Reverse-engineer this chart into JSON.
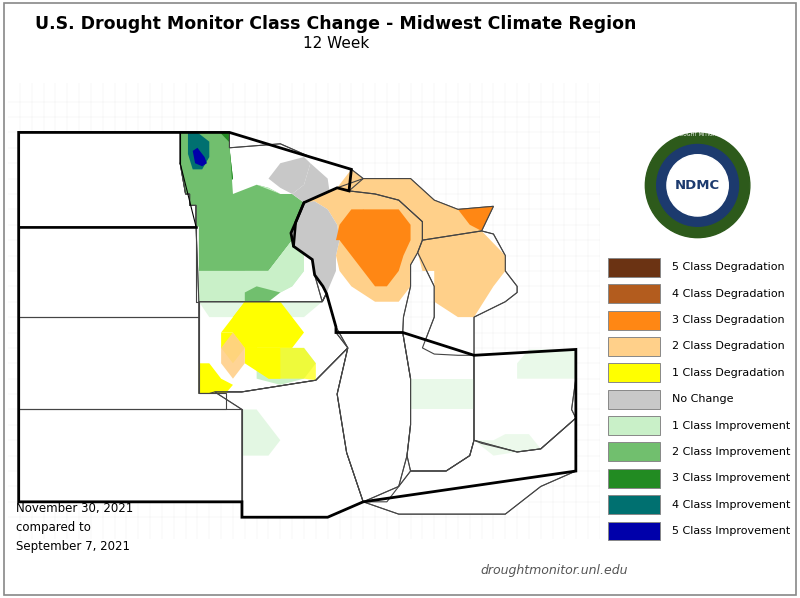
{
  "title_line1": "U.S. Drought Monitor Class Change - Midwest Climate Region",
  "title_line2": "12 Week",
  "date_text": "November 30, 2021\ncompared to\nSeptember 7, 2021",
  "website_text": "droughtmonitor.unl.edu",
  "background_color": "#ffffff",
  "legend_items": [
    {
      "label": "5 Class Degradation",
      "color": "#6b3313"
    },
    {
      "label": "4 Class Degradation",
      "color": "#b35c1e"
    },
    {
      "label": "3 Class Degradation",
      "color": "#ff8714"
    },
    {
      "label": "2 Class Degradation",
      "color": "#ffd08a"
    },
    {
      "label": "1 Class Degradation",
      "color": "#ffff00"
    },
    {
      "label": "No Change",
      "color": "#c8c8c8"
    },
    {
      "label": "1 Class Improvement",
      "color": "#c9f0c8"
    },
    {
      "label": "2 Class Improvement",
      "color": "#71bf6e"
    },
    {
      "label": "3 Class Improvement",
      "color": "#228b22"
    },
    {
      "label": "4 Class Improvement",
      "color": "#007070"
    },
    {
      "label": "5 Class Improvement",
      "color": "#0000aa"
    }
  ],
  "title_fontsize": 12.5,
  "subtitle_fontsize": 11,
  "legend_fontsize": 8.0,
  "date_fontsize": 8.5,
  "web_fontsize": 9.0
}
